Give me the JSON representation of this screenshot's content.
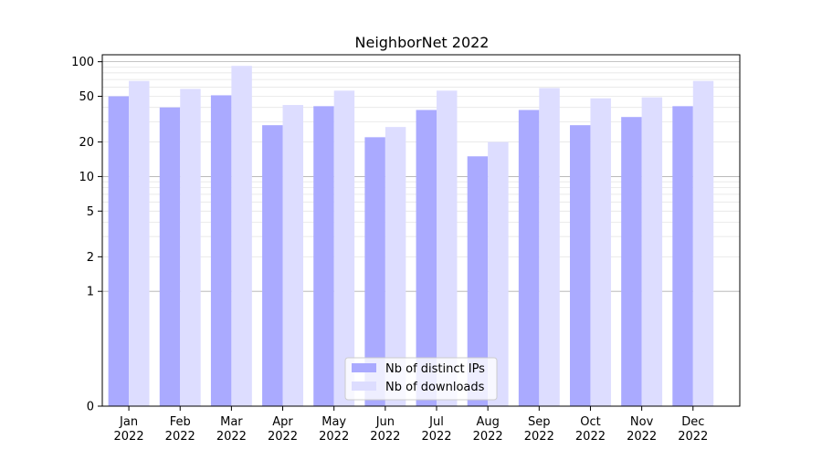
{
  "chart_data": {
    "type": "bar",
    "title": "NeighborNet 2022",
    "xlabel": "",
    "ylabel": "",
    "yscale": "symlog",
    "ylim": [
      0,
      115
    ],
    "grid": true,
    "legend_position": "bottom-center",
    "categories": [
      "Jan\n2022",
      "Feb\n2022",
      "Mar\n2022",
      "Apr\n2022",
      "May\n2022",
      "Jun\n2022",
      "Jul\n2022",
      "Aug\n2022",
      "Sep\n2022",
      "Oct\n2022",
      "Nov\n2022",
      "Dec\n2022"
    ],
    "yticks": [
      0,
      1,
      2,
      5,
      10,
      20,
      50,
      100
    ],
    "series": [
      {
        "name": "Nb of distinct IPs",
        "color": "#aaaaff",
        "values": [
          50,
          40,
          51,
          28,
          41,
          22,
          38,
          15,
          38,
          28,
          33,
          41
        ]
      },
      {
        "name": "Nb of downloads",
        "color": "#ddddff",
        "values": [
          68,
          58,
          92,
          42,
          56,
          27,
          56,
          20,
          59,
          48,
          49,
          68
        ]
      }
    ]
  }
}
